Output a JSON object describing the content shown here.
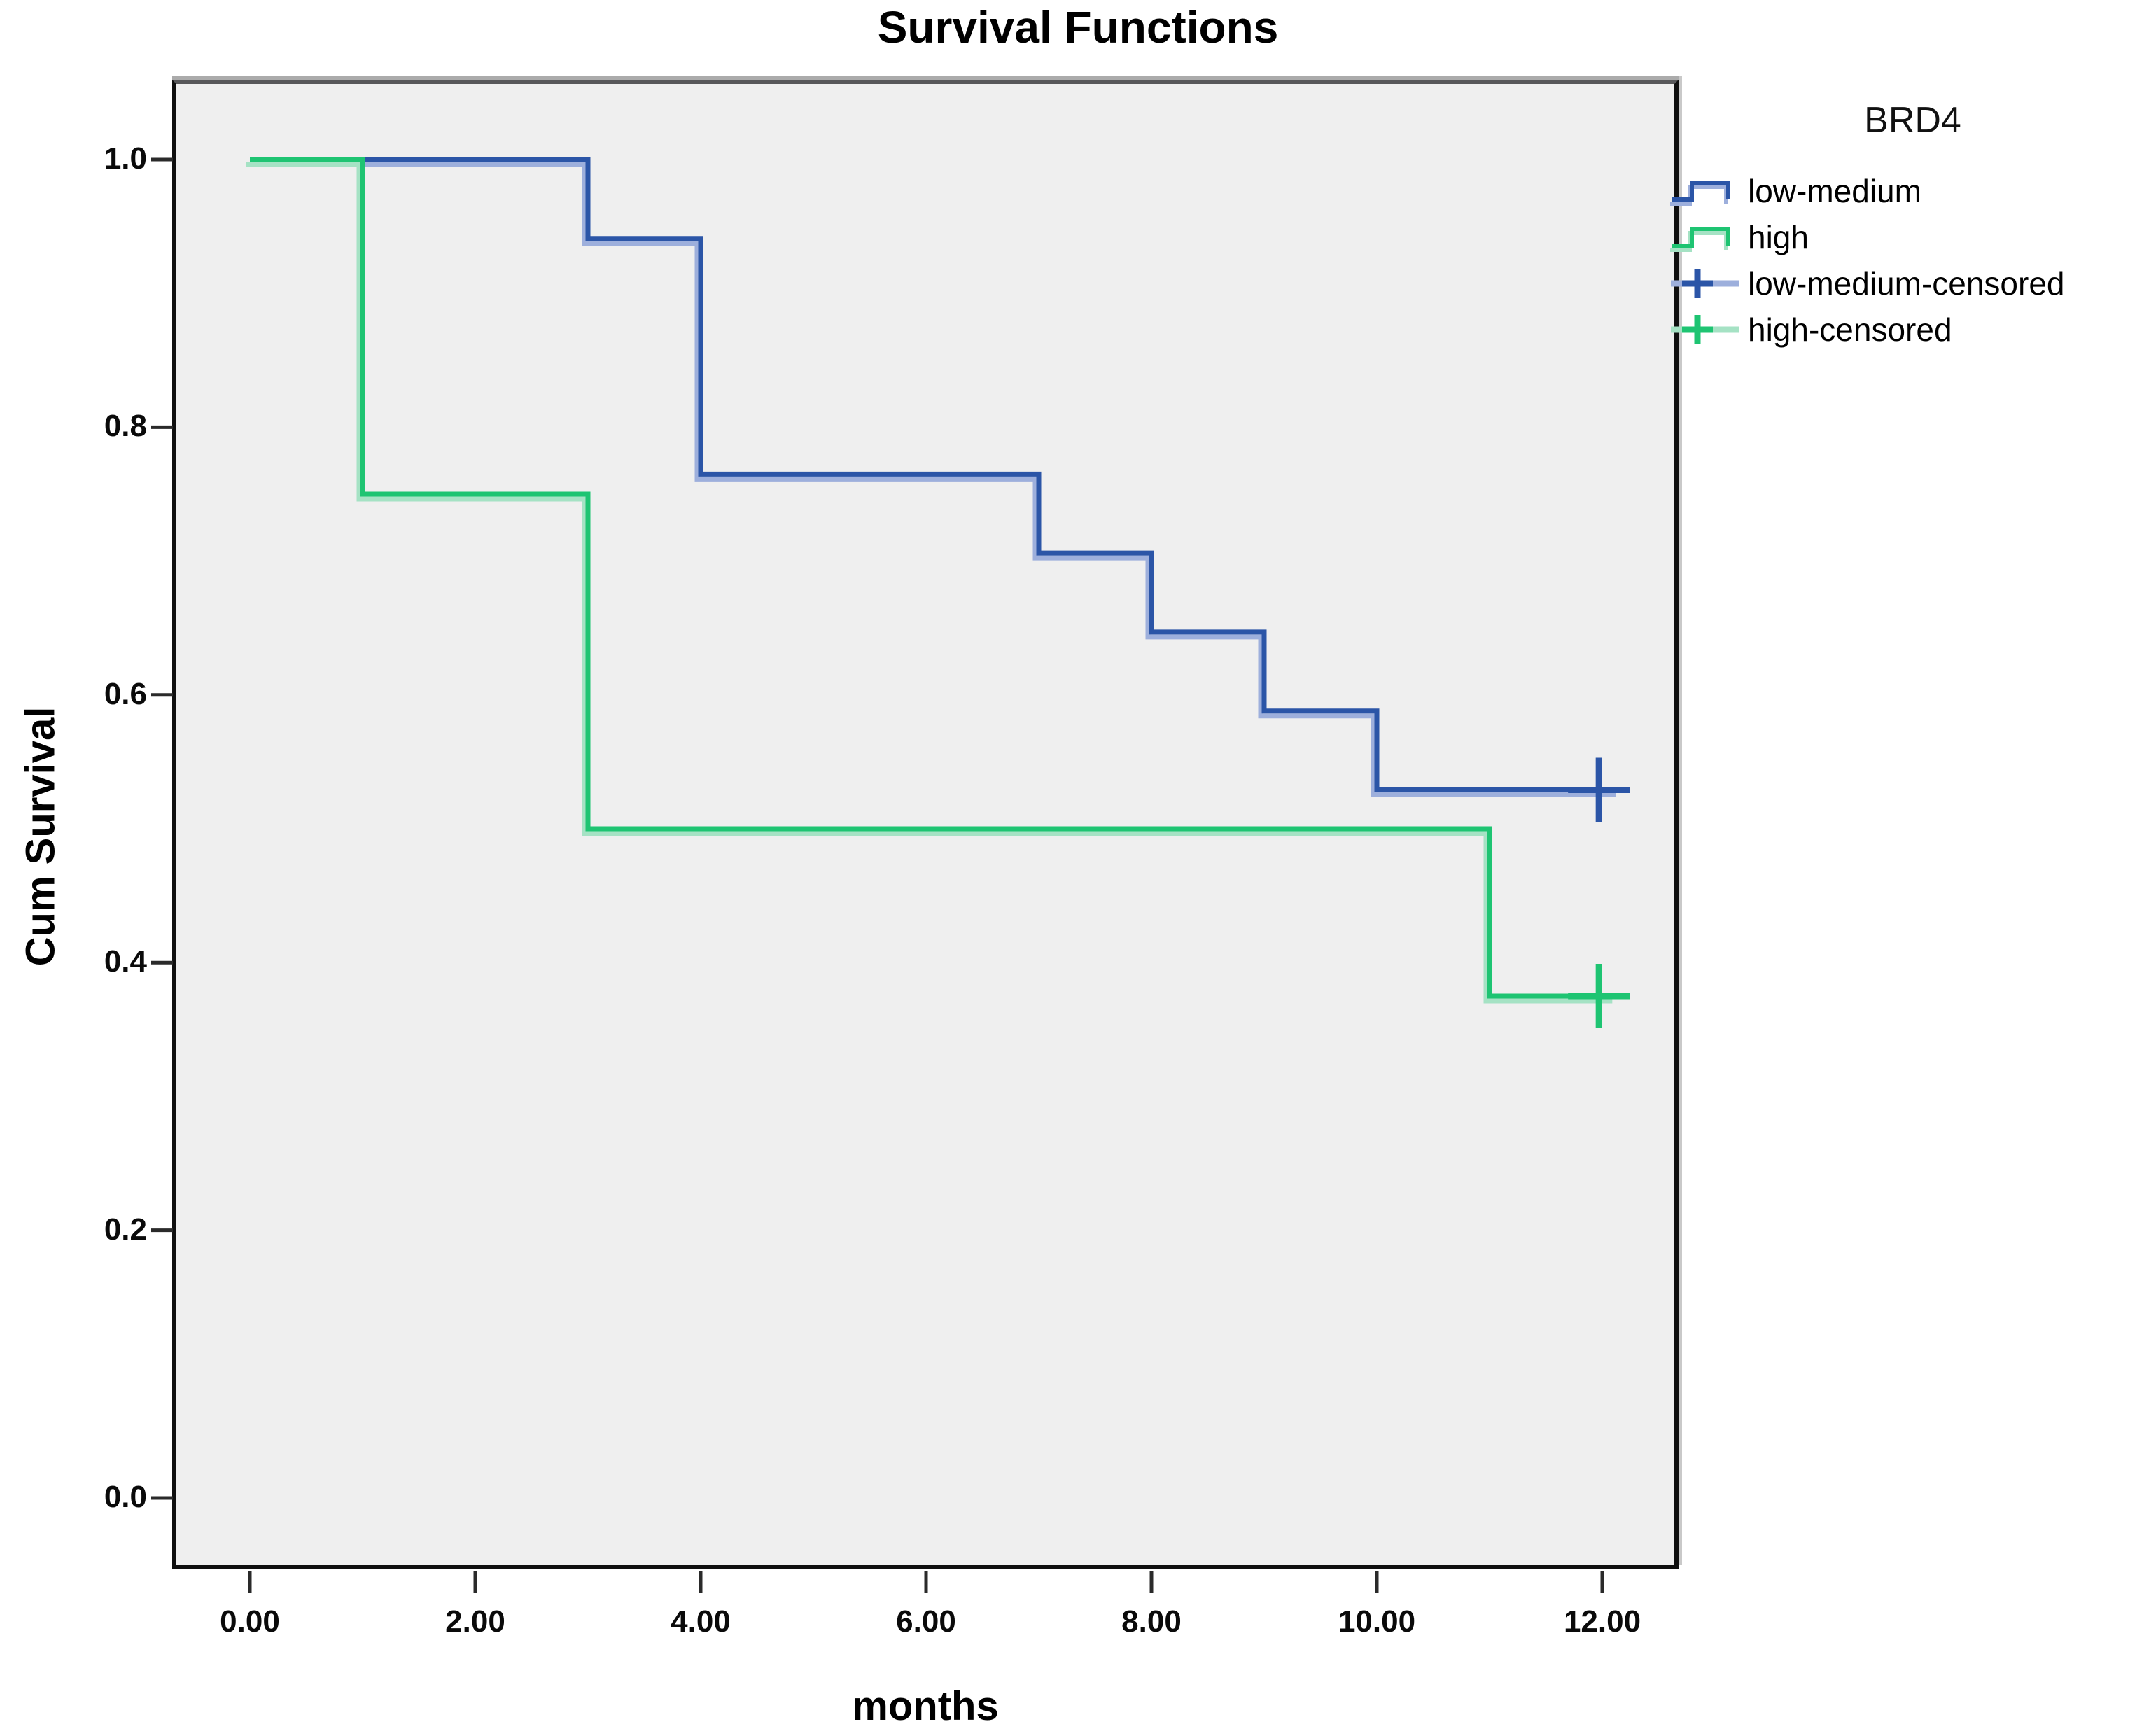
{
  "chart_data": {
    "type": "line",
    "subtype": "kaplan-meier-step",
    "title": "Survival Functions",
    "xlabel": "months",
    "ylabel": "Cum Survival",
    "xlim": [
      -0.65,
      12.65
    ],
    "ylim": [
      -0.05,
      1.06
    ],
    "grid": false,
    "legend_position": "top-right",
    "plot_bg": "#efefef",
    "x_ticks": [
      {
        "value": 0,
        "label": "0.00"
      },
      {
        "value": 2,
        "label": "2.00"
      },
      {
        "value": 4,
        "label": "4.00"
      },
      {
        "value": 6,
        "label": "6.00"
      },
      {
        "value": 8,
        "label": "8.00"
      },
      {
        "value": 10,
        "label": "10.00"
      },
      {
        "value": 12,
        "label": "12.00"
      }
    ],
    "y_ticks": [
      {
        "value": 1.0,
        "label": "1.0"
      },
      {
        "value": 0.8,
        "label": "0.8"
      },
      {
        "value": 0.6,
        "label": "0.6"
      },
      {
        "value": 0.4,
        "label": "0.4"
      },
      {
        "value": 0.2,
        "label": "0.2"
      },
      {
        "value": 0.0,
        "label": "0.0"
      }
    ],
    "legend": {
      "title": "BRD4",
      "entries": [
        {
          "label": "low-medium",
          "type": "line",
          "series": "low-medium"
        },
        {
          "label": "high",
          "type": "line",
          "series": "high"
        },
        {
          "label": "low-medium-censored",
          "type": "censored",
          "series": "low-medium"
        },
        {
          "label": "high-censored",
          "type": "censored",
          "series": "high"
        }
      ]
    },
    "series": [
      {
        "name": "low-medium",
        "color": "#2b55a7",
        "color_light": "#9dafdc",
        "steps": [
          [
            0,
            1.0
          ],
          [
            3,
            1.0
          ],
          [
            3,
            0.941
          ],
          [
            4,
            0.941
          ],
          [
            4,
            0.765
          ],
          [
            7,
            0.765
          ],
          [
            7,
            0.706
          ],
          [
            8,
            0.706
          ],
          [
            8,
            0.647
          ],
          [
            9,
            0.647
          ],
          [
            9,
            0.588
          ],
          [
            10,
            0.588
          ],
          [
            10,
            0.529
          ],
          [
            12.15,
            0.529
          ]
        ],
        "censored": [
          [
            11.97,
            0.529
          ]
        ]
      },
      {
        "name": "high",
        "color": "#1ec472",
        "color_light": "#a5e2c4",
        "steps": [
          [
            0,
            1.0
          ],
          [
            1,
            1.0
          ],
          [
            1,
            0.75
          ],
          [
            3,
            0.75
          ],
          [
            3,
            0.5
          ],
          [
            11,
            0.5
          ],
          [
            11,
            0.375
          ],
          [
            12.12,
            0.375
          ]
        ],
        "censored": [
          [
            11.97,
            0.375
          ]
        ]
      }
    ]
  }
}
